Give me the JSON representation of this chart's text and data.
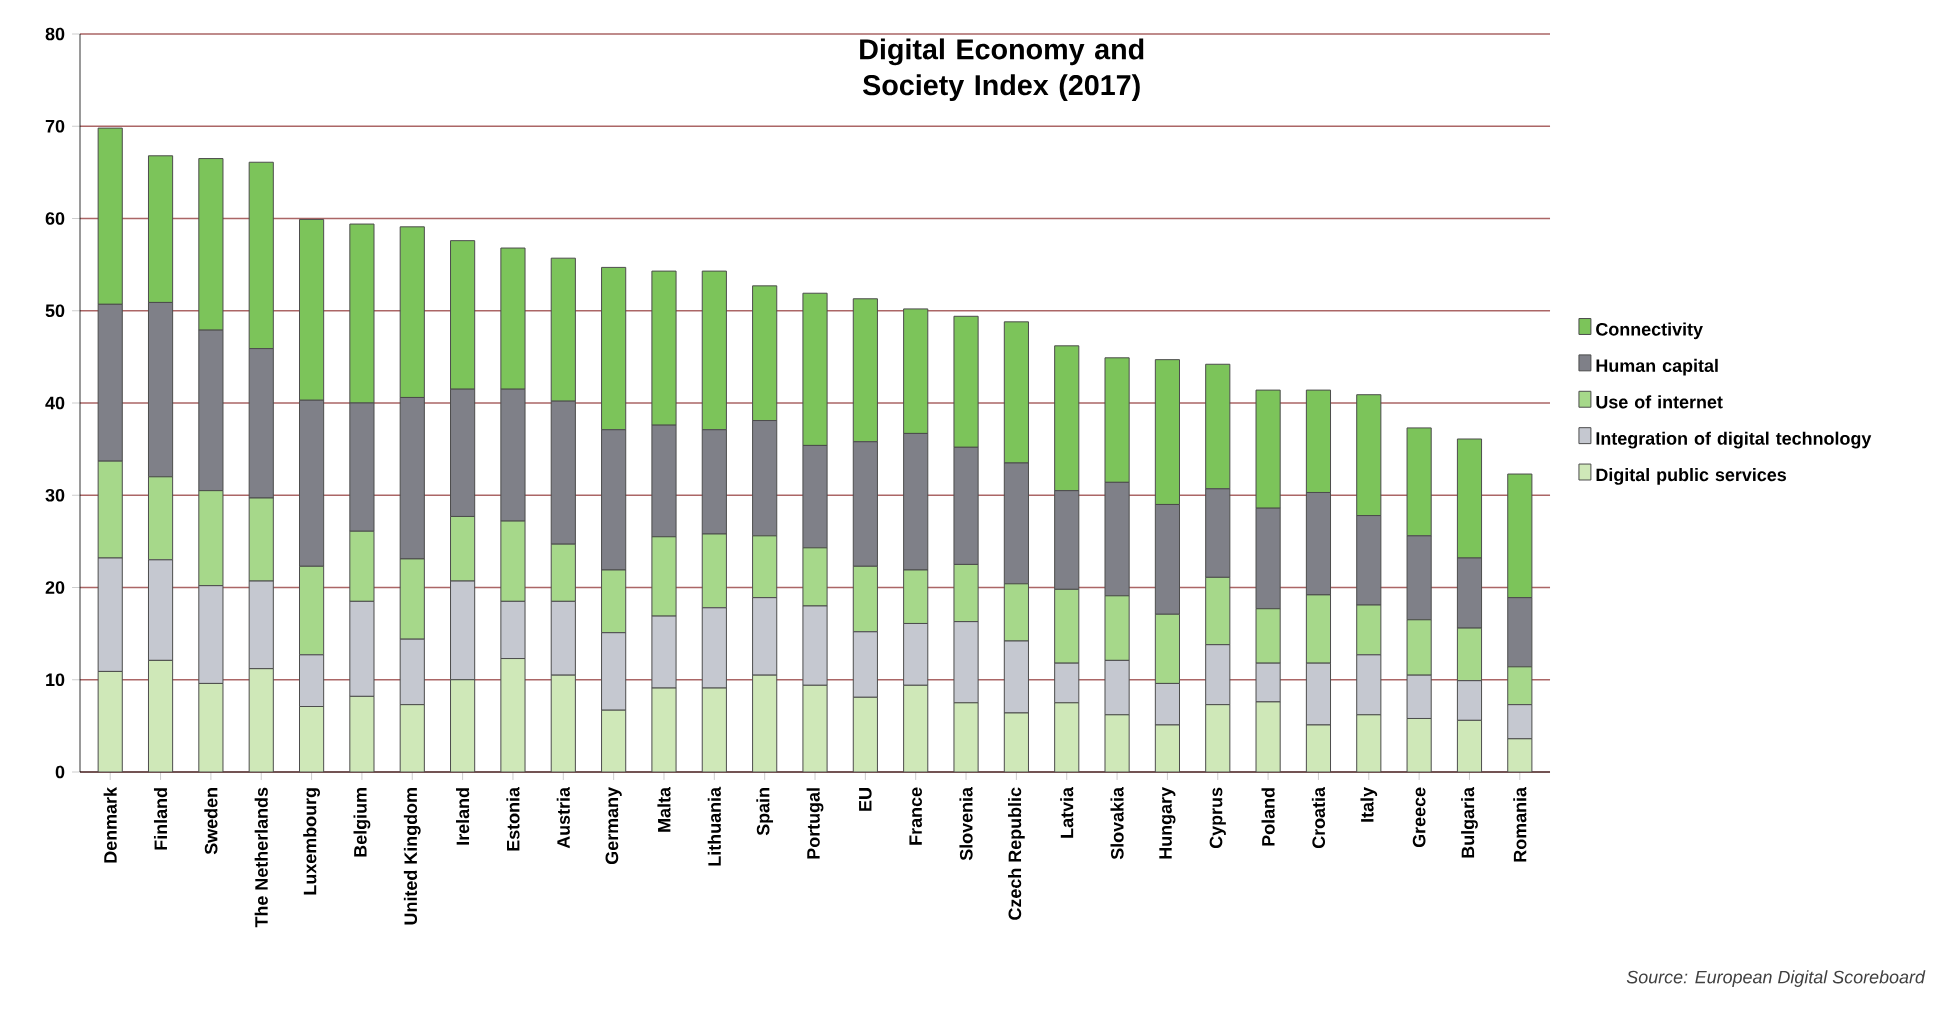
{
  "chart_data": {
    "type": "bar",
    "stacked": true,
    "title": "Digital Economy and Society Index (2017)",
    "categories": [
      "Denmark",
      "Finland",
      "Sweden",
      "The Netherlands",
      "Luxembourg",
      "Belgium",
      "United Kingdom",
      "Ireland",
      "Estonia",
      "Austria",
      "Germany",
      "Malta",
      "Lithuania",
      "Spain",
      "Portugal",
      "EU",
      "France",
      "Slovenia",
      "Czech Republic",
      "Latvia",
      "Slovakia",
      "Hungary",
      "Cyprus",
      "Poland",
      "Croatia",
      "Italy",
      "Greece",
      "Bulgaria",
      "Romania"
    ],
    "series": [
      {
        "name": "Digital public services",
        "color": "#cfe8b8",
        "values": [
          10.9,
          12.1,
          9.6,
          11.2,
          7.1,
          8.2,
          7.3,
          10.0,
          12.3,
          10.5,
          6.7,
          9.1,
          9.1,
          10.5,
          9.4,
          8.1,
          9.4,
          7.5,
          6.4,
          7.5,
          6.2,
          5.1,
          7.3,
          7.6,
          5.1,
          6.2,
          5.8,
          5.6,
          3.6
        ]
      },
      {
        "name": "Integration of digital technology",
        "color": "#c5c8d0",
        "values": [
          12.3,
          10.9,
          10.6,
          9.5,
          5.6,
          10.3,
          7.1,
          10.7,
          6.2,
          8.0,
          8.4,
          7.8,
          8.7,
          8.4,
          8.6,
          7.1,
          6.7,
          8.8,
          7.8,
          4.3,
          5.9,
          4.5,
          6.5,
          4.2,
          6.7,
          6.5,
          4.7,
          4.3,
          3.7
        ]
      },
      {
        "name": "Use of internet",
        "color": "#a6d88a",
        "values": [
          10.5,
          9.0,
          10.3,
          9.0,
          9.6,
          7.6,
          8.7,
          7.0,
          8.7,
          6.2,
          6.8,
          8.6,
          8.0,
          6.7,
          6.3,
          7.1,
          5.8,
          6.2,
          6.2,
          8.0,
          7.0,
          7.5,
          7.3,
          5.9,
          7.4,
          5.4,
          6.0,
          5.7,
          4.1
        ]
      },
      {
        "name": "Human capital",
        "color": "#7f8088",
        "values": [
          17.0,
          18.9,
          17.4,
          16.2,
          18.0,
          13.9,
          17.5,
          13.8,
          14.3,
          15.5,
          15.2,
          12.1,
          11.3,
          12.5,
          11.1,
          13.5,
          14.8,
          12.7,
          13.1,
          10.7,
          12.3,
          11.9,
          9.6,
          10.9,
          11.1,
          9.7,
          9.1,
          7.6,
          7.5
        ]
      },
      {
        "name": "Connectivity",
        "color": "#7cc45a",
        "values": [
          19.1,
          15.9,
          18.6,
          20.2,
          19.6,
          19.4,
          18.5,
          16.1,
          15.3,
          15.5,
          17.6,
          16.7,
          17.2,
          14.6,
          16.5,
          15.5,
          13.5,
          14.2,
          15.3,
          15.7,
          13.5,
          15.7,
          13.5,
          12.8,
          11.1,
          13.1,
          11.7,
          12.9,
          13.4
        ]
      }
    ],
    "ylim": [
      0,
      80
    ],
    "yticks": [
      0,
      10,
      20,
      30,
      40,
      50,
      60,
      70,
      80
    ],
    "grid": "y",
    "legend": "right",
    "annotations": [
      "Source: European Digital Scoreboard"
    ]
  }
}
